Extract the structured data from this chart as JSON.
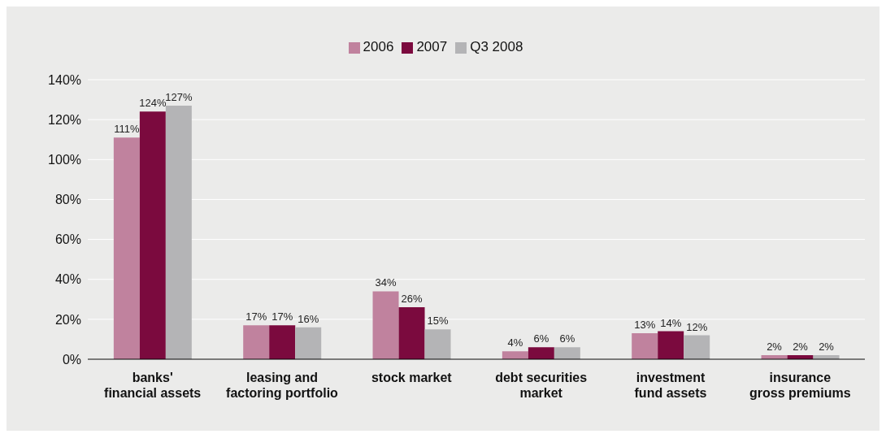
{
  "chart_data": {
    "type": "bar",
    "categories": [
      "banks'\nfinancial assets",
      "leasing and\nfactoring portfolio",
      "stock market",
      "debt securities\nmarket",
      "investment\nfund assets",
      "insurance\ngross premiums"
    ],
    "series": [
      {
        "name": "2006",
        "color": "#c0829e",
        "values": [
          111,
          17,
          34,
          4,
          13,
          2
        ],
        "value_labels": [
          "111%",
          "17%",
          "34%",
          "4%",
          "13%",
          "2%"
        ]
      },
      {
        "name": "2007",
        "color": "#7b0a3e",
        "values": [
          124,
          17,
          26,
          6,
          14,
          2
        ],
        "value_labels": [
          "124%",
          "17%",
          "26%",
          "6%",
          "14%",
          "2%"
        ]
      },
      {
        "name": "Q3 2008",
        "color": "#b4b4b6",
        "values": [
          127,
          16,
          15,
          6,
          12,
          2
        ],
        "value_labels": [
          "127%",
          "16%",
          "15%",
          "6%",
          "12%",
          "2%"
        ]
      }
    ],
    "ylim": [
      0,
      140
    ],
    "yticks": [
      {
        "value": 0,
        "label": "0%"
      },
      {
        "value": 20,
        "label": "20%"
      },
      {
        "value": 40,
        "label": "40%"
      },
      {
        "value": 60,
        "label": "60%"
      },
      {
        "value": 80,
        "label": "80%"
      },
      {
        "value": 100,
        "label": "100%"
      },
      {
        "value": 120,
        "label": "120%"
      },
      {
        "value": 140,
        "label": "140%"
      }
    ],
    "grid": "y",
    "legend": "top"
  }
}
